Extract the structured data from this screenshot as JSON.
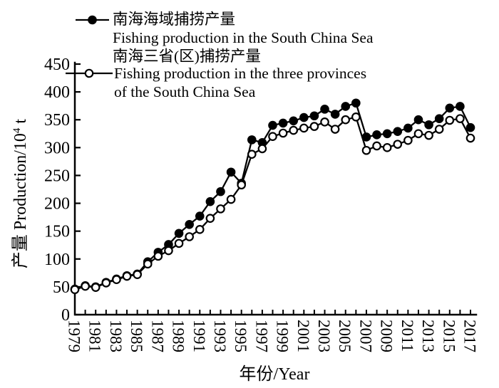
{
  "legend": {
    "series1_label_zh": "南海海域捕捞产量",
    "series1_label_en": "Fishing production in the South China Sea",
    "series2_label_zh": "南海三省(区)捕捞产量",
    "series2_label_en_line1": "Fishing production in the three provinces",
    "series2_label_en_line2": "of the South China Sea"
  },
  "chart_data": {
    "type": "line",
    "title": "",
    "xlabel": "年份/Year",
    "ylabel": "产量 Production/10⁴ t",
    "ylabel_parts": {
      "main": "产量 Production/10",
      "sup": "4",
      "tail": " t"
    },
    "x": [
      1979,
      1980,
      1981,
      1982,
      1983,
      1984,
      1985,
      1986,
      1987,
      1988,
      1989,
      1990,
      1991,
      1992,
      1993,
      1994,
      1995,
      1996,
      1997,
      1998,
      1999,
      2000,
      2001,
      2002,
      2003,
      2004,
      2005,
      2006,
      2007,
      2008,
      2009,
      2010,
      2011,
      2012,
      2013,
      2014,
      2015,
      2016,
      2017
    ],
    "series": [
      {
        "name": "南海海域捕捞产量 Fishing production in the South China Sea",
        "marker": "filled-circle",
        "values": [
          46,
          52,
          50,
          58,
          64,
          70,
          73,
          95,
          112,
          126,
          146,
          162,
          177,
          203,
          221,
          256,
          236,
          314,
          309,
          340,
          344,
          348,
          354,
          357,
          369,
          360,
          374,
          380,
          319,
          323,
          325,
          329,
          335,
          350,
          341,
          352,
          371,
          374,
          336
        ]
      },
      {
        "name": "南海三省(区)捕捞产量 Fishing production in the three provinces of the South China Sea",
        "marker": "open-circle",
        "values": [
          45,
          51,
          49,
          57,
          63,
          69,
          72,
          91,
          105,
          115,
          128,
          140,
          153,
          173,
          190,
          207,
          233,
          288,
          298,
          320,
          326,
          331,
          335,
          338,
          346,
          333,
          350,
          355,
          295,
          303,
          300,
          306,
          313,
          325,
          322,
          333,
          349,
          352,
          317
        ]
      }
    ],
    "ylim": [
      0,
      450
    ],
    "ytick_step": 50,
    "xtick_label_step": 2,
    "grid": false,
    "legend_position": "top-left",
    "colors": {
      "line": "#000000",
      "background": "#ffffff"
    }
  }
}
